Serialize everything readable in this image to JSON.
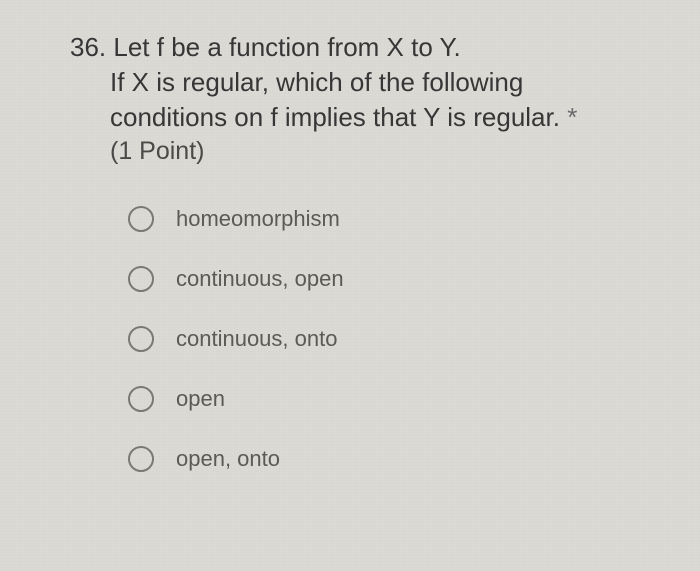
{
  "question": {
    "number": "36.",
    "line1": "Let f be a function from X to Y.",
    "line2": "If X is regular, which of the following",
    "line3": "conditions on f implies that Y is regular.",
    "required_mark": "*",
    "points": "(1 Point)"
  },
  "options": [
    {
      "label": "homeomorphism"
    },
    {
      "label": "continuous, open"
    },
    {
      "label": "continuous, onto"
    },
    {
      "label": "open"
    },
    {
      "label": "open, onto"
    }
  ],
  "styling": {
    "background_color": "#dcdad5",
    "text_color": "#373737",
    "option_text_color": "#5b5a57",
    "radio_border_color": "#7a7975",
    "question_fontsize": 26,
    "option_fontsize": 22,
    "radio_size": 26
  }
}
